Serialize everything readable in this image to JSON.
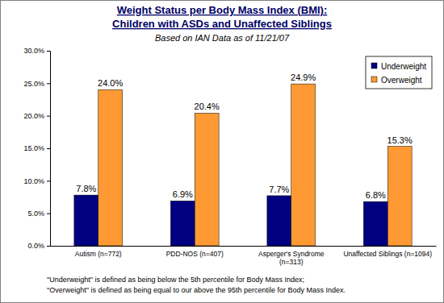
{
  "chart_data": {
    "type": "bar",
    "title": [
      "Weight Status per Body Mass Index (BMI):",
      "Children with ASDs and Unaffected Siblings"
    ],
    "subtitle": "Based on IAN Data as of 11/21/07",
    "categories": [
      "Autism (n=772)",
      "PDD-NOS (n=407)",
      "Asperger's Syndrome (n=313)",
      "Unaffected Siblings (n=1094)"
    ],
    "series": [
      {
        "name": "Underweight",
        "color": "#000080",
        "values": [
          7.8,
          6.9,
          7.7,
          6.8
        ],
        "value_labels": [
          "7.8%",
          "6.9%",
          "7.7%",
          "6.8%"
        ]
      },
      {
        "name": "Overweight",
        "color": "#FF9933",
        "values": [
          24.0,
          20.4,
          24.9,
          15.3
        ],
        "value_labels": [
          "24.0%",
          "20.4%",
          "24.9%",
          "15.3%"
        ]
      }
    ],
    "ylim": [
      0,
      30
    ],
    "yticks": [
      {
        "value": 0,
        "label": "0.0%"
      },
      {
        "value": 5,
        "label": "5.0%"
      },
      {
        "value": 10,
        "label": "10.0%"
      },
      {
        "value": 15,
        "label": "15.0%"
      },
      {
        "value": 20,
        "label": "20.0%"
      },
      {
        "value": 25,
        "label": "25.0%"
      },
      {
        "value": 30,
        "label": "30.0%"
      }
    ],
    "grid": false,
    "legend": "upper right",
    "data_labels": true,
    "annotations": [
      "\"Underweight\" is defined as being below the 5th percentile for Body Mass Index;",
      "\"Overweight\" is defined as being equal to our above the 95th percentile for Body Mass Index."
    ]
  }
}
